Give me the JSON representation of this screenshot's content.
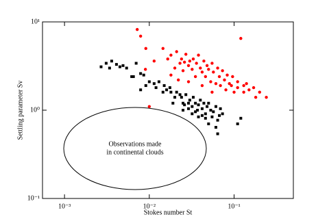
{
  "chart_data": {
    "type": "scatter",
    "x_label": "Stokes number St",
    "y_label": "Settling parameter Sv",
    "x_log": true,
    "y_log": true,
    "grid": false,
    "xlim": [
      0.00055,
      0.5
    ],
    "ylim": [
      0.1,
      10
    ],
    "xticks": [
      {
        "value": 0.001,
        "label": "10⁻³"
      },
      {
        "value": 0.01,
        "label": "10⁻²"
      },
      {
        "value": 0.1,
        "label": "10⁻¹"
      }
    ],
    "yticks": [
      {
        "value": 0.1,
        "label": "10⁻¹"
      },
      {
        "value": 1,
        "label": "10⁰"
      },
      {
        "value": 10,
        "label": "10¹"
      }
    ],
    "annotation": [
      "Observations made",
      "in continental clouds"
    ],
    "series": [
      {
        "color": "#000000",
        "marker": "square",
        "x": [
          0.0027,
          0.0031,
          0.0034,
          0.0036,
          0.0041,
          0.0045,
          0.0049,
          0.0054,
          0.007,
          0.0062,
          0.0079,
          0.0086,
          0.0079,
          0.0091,
          0.01,
          0.0114,
          0.013,
          0.015,
          0.016,
          0.0145,
          0.0175,
          0.018,
          0.02,
          0.021,
          0.023,
          0.024,
          0.025,
          0.027,
          0.029,
          0.03,
          0.032,
          0.033,
          0.035,
          0.037,
          0.038,
          0.04,
          0.042,
          0.044,
          0.046,
          0.048,
          0.05,
          0.053,
          0.055,
          0.057,
          0.061,
          0.064,
          0.067,
          0.069,
          0.073,
          0.046,
          0.042,
          0.035,
          0.029,
          0.026,
          0.061,
          0.064,
          0.0065,
          0.012,
          0.019,
          0.025,
          0.05,
          0.038,
          0.032,
          0.11,
          0.12
        ],
        "values": [
          3.1,
          3.4,
          3.0,
          3.6,
          3.3,
          3.1,
          3.2,
          3.0,
          3.4,
          2.4,
          2.6,
          2.5,
          1.7,
          1.9,
          2.1,
          2.0,
          2.1,
          1.9,
          1.7,
          1.6,
          1.8,
          1.6,
          1.4,
          1.6,
          1.5,
          1.4,
          1.2,
          1.5,
          1.2,
          1.3,
          1.1,
          1.4,
          1.2,
          1.0,
          1.15,
          1.3,
          1.04,
          1.2,
          0.91,
          1.1,
          1.2,
          1.0,
          0.84,
          0.96,
          1.1,
          0.77,
          0.87,
          1.04,
          0.91,
          0.81,
          0.87,
          0.96,
          1.04,
          1.15,
          0.64,
          0.54,
          2.4,
          1.8,
          1.2,
          1.0,
          0.7,
          0.84,
          0.91,
          0.7,
          0.81
        ]
      },
      {
        "color": "#ff0000",
        "marker": "circle",
        "x": [
          0.0072,
          0.0079,
          0.009,
          0.0091,
          0.01,
          0.0114,
          0.0145,
          0.0165,
          0.018,
          0.02,
          0.021,
          0.023,
          0.024,
          0.025,
          0.026,
          0.027,
          0.029,
          0.03,
          0.032,
          0.033,
          0.035,
          0.036,
          0.038,
          0.04,
          0.042,
          0.044,
          0.046,
          0.048,
          0.05,
          0.053,
          0.055,
          0.057,
          0.061,
          0.064,
          0.067,
          0.069,
          0.073,
          0.077,
          0.08,
          0.083,
          0.088,
          0.093,
          0.096,
          0.1,
          0.11,
          0.11,
          0.12,
          0.13,
          0.13,
          0.14,
          0.15,
          0.17,
          0.18,
          0.2,
          0.24,
          0.022,
          0.029,
          0.042,
          0.055,
          0.018
        ],
        "values": [
          8.2,
          6.9,
          2.9,
          5.0,
          1.1,
          3.6,
          5.0,
          3.8,
          4.2,
          3.0,
          4.6,
          3.4,
          3.8,
          2.8,
          3.5,
          4.3,
          3.2,
          3.6,
          2.9,
          3.8,
          2.4,
          3.4,
          4.2,
          3.0,
          2.7,
          3.6,
          2.4,
          3.2,
          2.9,
          2.1,
          3.4,
          2.7,
          2.0,
          3.0,
          2.4,
          1.9,
          2.8,
          2.2,
          1.7,
          2.5,
          2.0,
          1.9,
          2.4,
          1.6,
          2.1,
          1.8,
          6.5,
          1.9,
          1.6,
          2.0,
          1.7,
          1.8,
          1.4,
          1.6,
          1.4,
          2.2,
          2.1,
          1.9,
          1.6,
          2.5
        ]
      }
    ]
  }
}
